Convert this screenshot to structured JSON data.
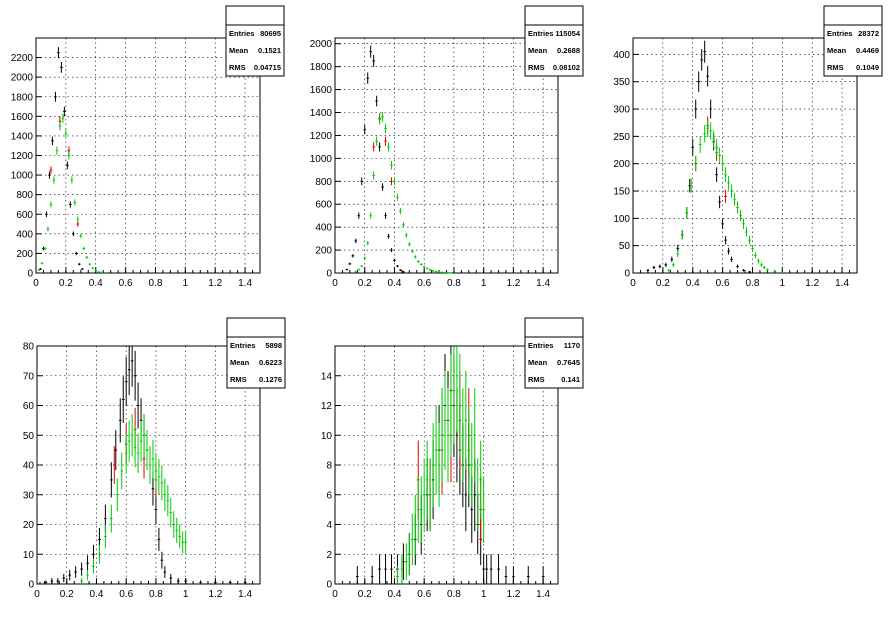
{
  "chart_data": [
    {
      "type": "scatter",
      "xlim": [
        0,
        1.5
      ],
      "ylim": [
        0,
        2400
      ],
      "x_ticks": [
        "0",
        "0.2",
        "0.4",
        "0.6",
        "0.8",
        "1",
        "1.2",
        "1.4"
      ],
      "y_ticks": [
        "0",
        "200",
        "400",
        "600",
        "800",
        "1000",
        "1200",
        "1400",
        "1600",
        "1800",
        "2000",
        "2200"
      ],
      "grid": true,
      "stats": [
        {
          "label": "Entries",
          "value": "80695"
        },
        {
          "label": "Mean",
          "value": "0.1521"
        },
        {
          "label": "RMS",
          "value": "0.04715"
        }
      ],
      "series": [
        {
          "color": "#000000",
          "x": [
            0.03,
            0.05,
            0.07,
            0.09,
            0.11,
            0.13,
            0.15,
            0.17,
            0.19,
            0.21,
            0.23,
            0.25,
            0.27,
            0.29,
            0.31
          ],
          "y": [
            40,
            250,
            600,
            1000,
            1350,
            1800,
            2250,
            2100,
            1650,
            1100,
            700,
            400,
            200,
            90,
            40
          ]
        },
        {
          "color": "#dd0000",
          "x": [
            0.1,
            0.16,
            0.22,
            0.28
          ],
          "y": [
            1050,
            1550,
            1250,
            500
          ]
        },
        {
          "color": "#00cc00",
          "x": [
            0.02,
            0.04,
            0.06,
            0.08,
            0.1,
            0.12,
            0.14,
            0.16,
            0.18,
            0.2,
            0.22,
            0.24,
            0.26,
            0.28,
            0.3,
            0.32,
            0.34,
            0.36,
            0.38,
            0.4,
            0.42,
            0.44
          ],
          "y": [
            30,
            100,
            250,
            450,
            700,
            950,
            1250,
            1500,
            1580,
            1420,
            1200,
            950,
            720,
            550,
            380,
            250,
            160,
            90,
            50,
            25,
            10,
            5
          ]
        }
      ]
    },
    {
      "type": "scatter",
      "xlim": [
        0,
        1.5
      ],
      "ylim": [
        0,
        2050
      ],
      "x_ticks": [
        "0",
        "0.2",
        "0.4",
        "0.6",
        "0.8",
        "1",
        "1.2",
        "1.4"
      ],
      "y_ticks": [
        "0",
        "200",
        "400",
        "600",
        "800",
        "1000",
        "1200",
        "1400",
        "1600",
        "1800",
        "2000"
      ],
      "grid": true,
      "stats": [
        {
          "label": "Entries",
          "value": "115054"
        },
        {
          "label": "Mean",
          "value": "0.2688"
        },
        {
          "label": "RMS",
          "value": "0.08102"
        }
      ],
      "series": [
        {
          "color": "#000000",
          "x": [
            0.08,
            0.1,
            0.12,
            0.14,
            0.16,
            0.18,
            0.2,
            0.22,
            0.24,
            0.26,
            0.28,
            0.3,
            0.32,
            0.34,
            0.36,
            0.38,
            0.4,
            0.42,
            0.44,
            0.46
          ],
          "y": [
            30,
            80,
            150,
            280,
            500,
            800,
            1250,
            1700,
            1930,
            1850,
            1500,
            1100,
            750,
            500,
            320,
            200,
            110,
            60,
            25,
            10
          ]
        },
        {
          "color": "#dd0000",
          "x": [
            0.26,
            0.3,
            0.34,
            0.38
          ],
          "y": [
            1100,
            1350,
            1150,
            800
          ]
        },
        {
          "color": "#00cc00",
          "x": [
            0.14,
            0.16,
            0.18,
            0.2,
            0.22,
            0.24,
            0.26,
            0.28,
            0.3,
            0.32,
            0.34,
            0.36,
            0.38,
            0.4,
            0.42,
            0.44,
            0.46,
            0.48,
            0.5,
            0.52,
            0.54,
            0.56,
            0.58,
            0.6,
            0.62,
            0.64,
            0.66,
            0.68,
            0.7,
            0.72,
            0.74,
            0.76,
            0.78
          ],
          "y": [
            10,
            30,
            60,
            130,
            260,
            500,
            850,
            1150,
            1340,
            1360,
            1260,
            1100,
            940,
            800,
            660,
            540,
            420,
            330,
            250,
            190,
            140,
            100,
            75,
            55,
            40,
            28,
            18,
            12,
            8,
            5,
            3,
            2,
            1
          ]
        }
      ]
    },
    {
      "type": "scatter",
      "xlim": [
        0,
        1.5
      ],
      "ylim": [
        0,
        430
      ],
      "x_ticks": [
        "0",
        "0.2",
        "0.4",
        "0.6",
        "0.8",
        "1",
        "1.2",
        "1.4"
      ],
      "y_ticks": [
        "0",
        "50",
        "100",
        "150",
        "200",
        "250",
        "300",
        "350",
        "400"
      ],
      "grid": true,
      "stats": [
        {
          "label": "Entries",
          "value": "28372"
        },
        {
          "label": "Mean",
          "value": "0.4469"
        },
        {
          "label": "RMS",
          "value": "0.1049"
        }
      ],
      "series": [
        {
          "color": "#000000",
          "x": [
            0.1,
            0.14,
            0.18,
            0.22,
            0.26,
            0.3,
            0.33,
            0.36,
            0.38,
            0.4,
            0.42,
            0.44,
            0.46,
            0.48,
            0.5,
            0.52,
            0.54,
            0.56,
            0.58,
            0.6,
            0.62,
            0.64,
            0.66,
            0.7,
            0.74,
            0.78
          ],
          "y": [
            5,
            10,
            12,
            15,
            25,
            45,
            70,
            110,
            160,
            230,
            300,
            350,
            390,
            405,
            360,
            300,
            240,
            180,
            130,
            90,
            60,
            40,
            25,
            12,
            5,
            2
          ]
        },
        {
          "color": "#dd0000",
          "x": [
            0.42,
            0.5,
            0.56,
            0.62
          ],
          "y": [
            200,
            270,
            220,
            140
          ]
        },
        {
          "color": "#00cc00",
          "x": [
            0.24,
            0.27,
            0.3,
            0.33,
            0.36,
            0.39,
            0.42,
            0.45,
            0.48,
            0.5,
            0.52,
            0.54,
            0.56,
            0.58,
            0.6,
            0.62,
            0.64,
            0.66,
            0.68,
            0.7,
            0.72,
            0.74,
            0.76,
            0.78,
            0.8,
            0.82,
            0.84,
            0.86,
            0.88,
            0.9,
            0.95,
            1.0
          ],
          "y": [
            5,
            15,
            35,
            70,
            110,
            160,
            200,
            235,
            255,
            265,
            260,
            245,
            230,
            215,
            200,
            180,
            165,
            150,
            135,
            120,
            105,
            90,
            75,
            60,
            45,
            32,
            22,
            15,
            10,
            6,
            3,
            1
          ]
        }
      ]
    },
    {
      "type": "scatter",
      "xlim": [
        0,
        1.5
      ],
      "ylim": [
        0,
        80
      ],
      "x_ticks": [
        "0",
        "0.2",
        "0.4",
        "0.6",
        "0.8",
        "1",
        "1.2",
        "1.4"
      ],
      "y_ticks": [
        "0",
        "10",
        "20",
        "30",
        "40",
        "50",
        "60",
        "70",
        "80"
      ],
      "grid": true,
      "stats": [
        {
          "label": "Entries",
          "value": "5898"
        },
        {
          "label": "Mean",
          "value": "0.6223"
        },
        {
          "label": "RMS",
          "value": "0.1276"
        }
      ],
      "series": [
        {
          "color": "#000000",
          "x": [
            0.02,
            0.06,
            0.1,
            0.14,
            0.18,
            0.22,
            0.26,
            0.3,
            0.34,
            0.38,
            0.42,
            0.46,
            0.5,
            0.53,
            0.56,
            0.58,
            0.6,
            0.62,
            0.64,
            0.66,
            0.68,
            0.7,
            0.72,
            0.74,
            0.76,
            0.78,
            0.8,
            0.82,
            0.84,
            0.86,
            0.9,
            0.95,
            1.0,
            1.1,
            1.2,
            1.3,
            1.4
          ],
          "y": [
            0,
            0.5,
            1,
            1,
            2,
            3,
            4,
            5,
            7,
            10,
            15,
            22,
            35,
            45,
            55,
            62,
            68,
            72,
            75,
            70,
            60,
            55,
            50,
            45,
            40,
            32,
            25,
            15,
            8,
            4,
            2,
            1,
            1,
            0.5,
            0.5,
            0.5,
            0.5
          ]
        },
        {
          "color": "#dd0000",
          "x": [
            0.52,
            0.6,
            0.66,
            0.72,
            0.8
          ],
          "y": [
            40,
            47,
            52,
            42,
            35
          ]
        },
        {
          "color": "#00cc00",
          "x": [
            0.3,
            0.34,
            0.38,
            0.42,
            0.46,
            0.5,
            0.54,
            0.57,
            0.6,
            0.62,
            0.64,
            0.66,
            0.68,
            0.7,
            0.72,
            0.74,
            0.76,
            0.78,
            0.8,
            0.82,
            0.84,
            0.86,
            0.88,
            0.9,
            0.92,
            0.94,
            0.96,
            0.98,
            1.0
          ],
          "y": [
            1,
            3,
            6,
            10,
            16,
            22,
            30,
            38,
            44,
            48,
            50,
            46,
            44,
            48,
            50,
            45,
            40,
            42,
            38,
            36,
            34,
            30,
            28,
            24,
            20,
            18,
            16,
            14,
            14
          ]
        }
      ]
    },
    {
      "type": "scatter",
      "xlim": [
        0,
        1.5
      ],
      "ylim": [
        0,
        16
      ],
      "x_ticks": [
        "0",
        "0.2",
        "0.4",
        "0.6",
        "0.8",
        "1",
        "1.2",
        "1.4"
      ],
      "y_ticks": [
        "0",
        "2",
        "4",
        "6",
        "8",
        "10",
        "12",
        "14"
      ],
      "grid": true,
      "stats": [
        {
          "label": "Entries",
          "value": "1170"
        },
        {
          "label": "Mean",
          "value": "0.7645"
        },
        {
          "label": "RMS",
          "value": "0.141"
        }
      ],
      "series": [
        {
          "color": "#000000",
          "x": [
            0.15,
            0.25,
            0.3,
            0.34,
            0.38,
            0.42,
            0.46,
            0.5,
            0.54,
            0.58,
            0.62,
            0.66,
            0.7,
            0.72,
            0.74,
            0.76,
            0.78,
            0.8,
            0.82,
            0.84,
            0.86,
            0.88,
            0.9,
            0.92,
            0.94,
            0.96,
            0.98,
            1.0,
            1.02,
            1.05,
            1.1,
            1.15,
            1.2,
            1.3,
            1.4
          ],
          "y": [
            0.5,
            0.5,
            1,
            1,
            1,
            1,
            1.5,
            2,
            3,
            4,
            6,
            7,
            9,
            10,
            12,
            11,
            13,
            12,
            10,
            9,
            8,
            6,
            8,
            5,
            6,
            4,
            3,
            1,
            1,
            1,
            1,
            0.5,
            0.5,
            0.5,
            0.5
          ]
        },
        {
          "color": "#dd0000",
          "x": [
            0.56,
            0.64,
            0.72,
            0.78,
            0.84,
            0.9,
            0.98
          ],
          "y": [
            7,
            6,
            9,
            10,
            11,
            10,
            5
          ]
        },
        {
          "color": "#00cc00",
          "x": [
            0.42,
            0.45,
            0.48,
            0.5,
            0.52,
            0.54,
            0.56,
            0.58,
            0.6,
            0.62,
            0.64,
            0.66,
            0.68,
            0.7,
            0.72,
            0.74,
            0.76,
            0.78,
            0.8,
            0.82,
            0.84,
            0.86,
            0.88,
            0.9,
            0.92,
            0.94,
            0.96,
            0.98,
            1.0
          ],
          "y": [
            0.5,
            1,
            1.5,
            2,
            3,
            4,
            5,
            5,
            6,
            7,
            6,
            8,
            9,
            8,
            10,
            11,
            10,
            12,
            13,
            14,
            12,
            10,
            11,
            9,
            8,
            10,
            6,
            7,
            5
          ]
        }
      ]
    }
  ]
}
